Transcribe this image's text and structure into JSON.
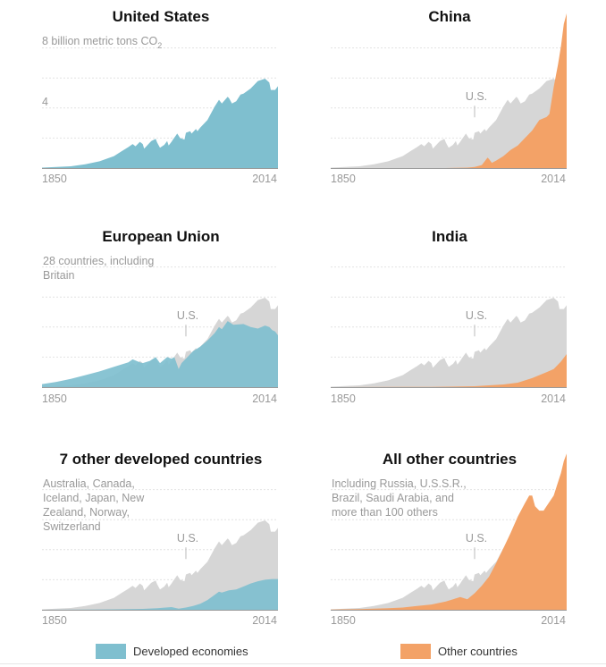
{
  "colors": {
    "developed": "#7fbfcf",
    "developed_dark": "#63a9bd",
    "other": "#f3a267",
    "us_ghost": "#d6d6d6",
    "grid": "#e2e2e2",
    "axis": "#9a9a9a",
    "label": "#999999"
  },
  "legend": {
    "developed": "Developed economies",
    "other": "Other countries"
  },
  "chart_data": [
    {
      "type": "area",
      "title": "United States",
      "ylabel_top": "8 billion metric tons CO",
      "ylabel_sub": "2",
      "ytick_mid": "4",
      "xtick_start": "1850",
      "xtick_end": "2014",
      "ylim": [
        0,
        10
      ],
      "xlim": [
        1850,
        2014
      ],
      "color": "developed",
      "series": [
        {
          "x": [
            1850,
            1860,
            1870,
            1880,
            1890,
            1900,
            1905,
            1910,
            1913,
            1915,
            1918,
            1920,
            1921,
            1925,
            1926,
            1929,
            1930,
            1932,
            1935,
            1937,
            1938,
            1940,
            1941,
            1944,
            1946,
            1949,
            1950,
            1953,
            1954,
            1957,
            1958,
            1960,
            1965,
            1970,
            1973,
            1975,
            1979,
            1980,
            1982,
            1985,
            1988,
            1990,
            1995,
            2000,
            2005,
            2008,
            2009,
            2012,
            2014
          ],
          "values": [
            0.03,
            0.07,
            0.12,
            0.25,
            0.45,
            0.8,
            1.1,
            1.4,
            1.6,
            1.45,
            1.75,
            1.6,
            1.3,
            1.7,
            1.8,
            1.95,
            1.7,
            1.35,
            1.55,
            1.8,
            1.5,
            1.75,
            1.9,
            2.3,
            2.0,
            1.9,
            2.35,
            2.45,
            2.3,
            2.6,
            2.45,
            2.7,
            3.2,
            4.1,
            4.55,
            4.3,
            4.75,
            4.65,
            4.3,
            4.45,
            4.9,
            4.95,
            5.3,
            5.8,
            5.95,
            5.7,
            5.2,
            5.2,
            5.45
          ]
        }
      ]
    },
    {
      "type": "area",
      "title": "China",
      "annotation": "U.S.",
      "xtick_start": "1850",
      "xtick_end": "2014",
      "ylim": [
        0,
        10
      ],
      "xlim": [
        1850,
        2014
      ],
      "color": "other",
      "series": [
        {
          "x": [
            1850,
            1880,
            1900,
            1920,
            1930,
            1937,
            1945,
            1950,
            1955,
            1959,
            1960,
            1962,
            1965,
            1970,
            1975,
            1980,
            1985,
            1990,
            1995,
            2000,
            2002,
            2005,
            2008,
            2010,
            2012,
            2014
          ],
          "values": [
            0,
            0,
            0,
            0,
            0,
            0.02,
            0.03,
            0.08,
            0.2,
            0.7,
            0.6,
            0.35,
            0.5,
            0.8,
            1.2,
            1.5,
            2.0,
            2.5,
            3.2,
            3.4,
            3.6,
            5.4,
            6.9,
            8.1,
            9.6,
            10.3
          ]
        }
      ]
    },
    {
      "type": "area",
      "title": "European Union",
      "note": [
        "28 countries, including",
        "Britain"
      ],
      "annotation": "U.S.",
      "xtick_start": "1850",
      "xtick_end": "2014",
      "ylim": [
        0,
        10
      ],
      "xlim": [
        1850,
        2014
      ],
      "color": "developed",
      "series": [
        {
          "x": [
            1850,
            1860,
            1870,
            1880,
            1890,
            1900,
            1910,
            1913,
            1918,
            1920,
            1925,
            1929,
            1932,
            1937,
            1940,
            1942,
            1945,
            1947,
            1950,
            1955,
            1960,
            1965,
            1970,
            1973,
            1975,
            1979,
            1983,
            1990,
            1995,
            2000,
            2005,
            2008,
            2010,
            2012,
            2014
          ],
          "values": [
            0.2,
            0.35,
            0.55,
            0.8,
            1.05,
            1.35,
            1.65,
            1.85,
            1.65,
            1.6,
            1.75,
            2.0,
            1.6,
            2.0,
            1.9,
            2.0,
            1.2,
            1.6,
            1.9,
            2.4,
            2.7,
            3.1,
            3.6,
            4.0,
            3.85,
            4.4,
            4.15,
            4.2,
            4.0,
            3.9,
            4.1,
            4.0,
            3.8,
            3.7,
            3.45
          ]
        }
      ]
    },
    {
      "type": "area",
      "title": "India",
      "annotation": "U.S.",
      "xtick_start": "1850",
      "xtick_end": "2014",
      "ylim": [
        0,
        10
      ],
      "xlim": [
        1850,
        2014
      ],
      "color": "other",
      "series": [
        {
          "x": [
            1850,
            1900,
            1920,
            1940,
            1950,
            1960,
            1970,
            1980,
            1990,
            2000,
            2005,
            2010,
            2014
          ],
          "values": [
            0,
            0.01,
            0.02,
            0.04,
            0.06,
            0.12,
            0.18,
            0.3,
            0.6,
            1.0,
            1.2,
            1.7,
            2.2
          ]
        }
      ]
    },
    {
      "type": "area",
      "title": "7 other developed countries",
      "note": [
        "Australia, Canada,",
        "Iceland, Japan, New",
        "Zealand, Norway,",
        "Switzerland"
      ],
      "annotation": "U.S.",
      "xtick_start": "1850",
      "xtick_end": "2014",
      "ylim": [
        0,
        10
      ],
      "xlim": [
        1850,
        2014
      ],
      "color": "developed",
      "series": [
        {
          "x": [
            1850,
            1880,
            1900,
            1920,
            1930,
            1940,
            1945,
            1950,
            1955,
            1960,
            1965,
            1970,
            1973,
            1975,
            1980,
            1985,
            1990,
            1995,
            2000,
            2005,
            2010,
            2014
          ],
          "values": [
            0,
            0.01,
            0.03,
            0.06,
            0.1,
            0.18,
            0.08,
            0.15,
            0.25,
            0.4,
            0.65,
            1.0,
            1.2,
            1.15,
            1.3,
            1.35,
            1.55,
            1.75,
            1.9,
            2.0,
            2.05,
            2.05
          ]
        }
      ]
    },
    {
      "type": "area",
      "title": "All other countries",
      "note": [
        "Including Russia, U.S.S.R.,",
        "Brazil, Saudi Arabia, and",
        "more than 100 others"
      ],
      "annotation": "U.S.",
      "xtick_start": "1850",
      "xtick_end": "2014",
      "ylim": [
        0,
        10
      ],
      "xlim": [
        1850,
        2014
      ],
      "color": "other",
      "series": [
        {
          "x": [
            1850,
            1870,
            1890,
            1900,
            1910,
            1920,
            1930,
            1940,
            1945,
            1950,
            1955,
            1960,
            1965,
            1970,
            1975,
            1980,
            1985,
            1988,
            1990,
            1992,
            1995,
            1998,
            2000,
            2005,
            2008,
            2010,
            2012,
            2014
          ],
          "values": [
            0.02,
            0.05,
            0.1,
            0.15,
            0.25,
            0.35,
            0.55,
            0.85,
            0.7,
            1.1,
            1.6,
            2.2,
            3.1,
            4.1,
            5.1,
            6.2,
            7.1,
            7.6,
            7.6,
            6.9,
            6.6,
            6.6,
            6.9,
            7.6,
            8.5,
            9.1,
            9.9,
            10.4
          ]
        }
      ]
    }
  ],
  "us_reference": {
    "x": [
      1850,
      1860,
      1870,
      1880,
      1890,
      1900,
      1905,
      1910,
      1913,
      1915,
      1918,
      1920,
      1921,
      1925,
      1926,
      1929,
      1930,
      1932,
      1935,
      1937,
      1938,
      1940,
      1941,
      1944,
      1946,
      1949,
      1950,
      1953,
      1954,
      1957,
      1958,
      1960,
      1965,
      1970,
      1973,
      1975,
      1979,
      1980,
      1982,
      1985,
      1988,
      1990,
      1995,
      2000,
      2005,
      2008,
      2009,
      2012,
      2014
    ],
    "values": [
      0.03,
      0.07,
      0.12,
      0.25,
      0.45,
      0.8,
      1.1,
      1.4,
      1.6,
      1.45,
      1.75,
      1.6,
      1.3,
      1.7,
      1.8,
      1.95,
      1.7,
      1.35,
      1.55,
      1.8,
      1.5,
      1.75,
      1.9,
      2.3,
      2.0,
      1.9,
      2.35,
      2.45,
      2.3,
      2.6,
      2.45,
      2.7,
      3.2,
      4.1,
      4.55,
      4.3,
      4.75,
      4.65,
      4.3,
      4.45,
      4.9,
      4.95,
      5.3,
      5.8,
      5.95,
      5.7,
      5.2,
      5.2,
      5.45
    ]
  }
}
